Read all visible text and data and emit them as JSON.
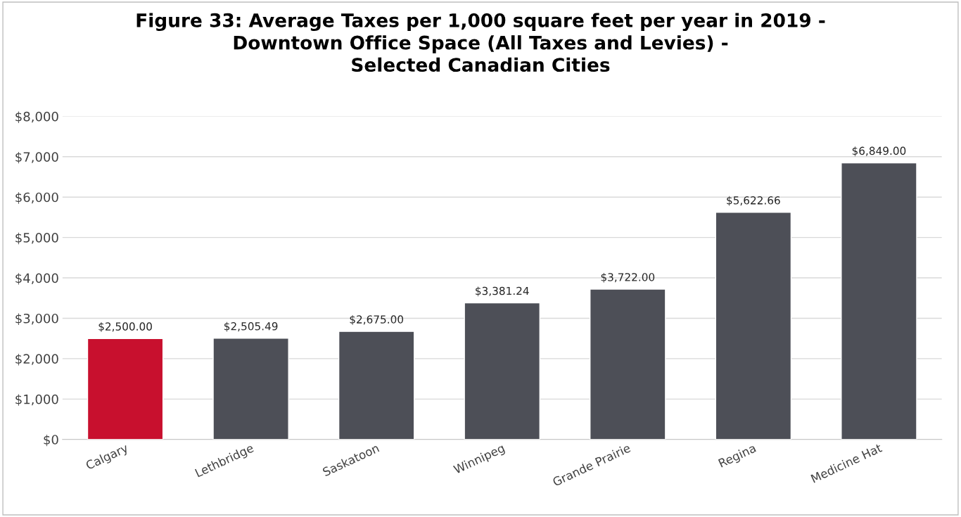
{
  "chart_data": {
    "type": "bar",
    "title": "Figure 33: Average Taxes per 1,000 square feet per year in 2019 -\nDowntown Office Space (All Taxes and Levies) -\nSelected Canadian Cities",
    "categories": [
      "Calgary",
      "Lethbridge",
      "Saskatoon",
      "Winnipeg",
      "Grande Prairie",
      "Regina",
      "Medicine Hat"
    ],
    "values": [
      2500.0,
      2505.49,
      2675.0,
      3381.24,
      3722.0,
      5622.66,
      6849.0
    ],
    "colors": [
      "#c8102e",
      "#4d4f57",
      "#4d4f57",
      "#4d4f57",
      "#4d4f57",
      "#4d4f57",
      "#4d4f57"
    ],
    "value_labels": [
      "$2,500.00",
      "$2,505.49",
      "$2,675.00",
      "$3,381.24",
      "$3,722.00",
      "$5,622.66",
      "$6,849.00"
    ],
    "ylim": [
      0,
      8000
    ],
    "yticks": [
      {
        "value": 0,
        "label": "$0"
      },
      {
        "value": 1000,
        "label": "$1,000"
      },
      {
        "value": 2000,
        "label": "$2,000"
      },
      {
        "value": 3000,
        "label": "$3,000"
      },
      {
        "value": 4000,
        "label": "$4,000"
      },
      {
        "value": 5000,
        "label": "$5,000"
      },
      {
        "value": 6000,
        "label": "$6,000"
      },
      {
        "value": 7000,
        "label": "$7,000"
      },
      {
        "value": 8000,
        "label": "$8,000"
      }
    ],
    "grid": "y"
  }
}
